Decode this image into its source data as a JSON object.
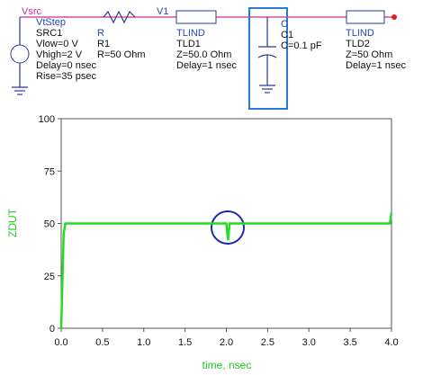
{
  "schematic": {
    "source": {
      "net": "Vsrc",
      "type": "VtStep",
      "name": "SRC1",
      "params": [
        "Vlow=0 V",
        "Vhigh=2 V",
        "Delay=0 nsec",
        "Rise=35 psec"
      ]
    },
    "resistor": {
      "type": "R",
      "name": "R1",
      "params": [
        "R=50 Ohm"
      ]
    },
    "node": "V1",
    "tline1": {
      "type": "TLIND",
      "name": "TLD1",
      "params": [
        "Z=50.0 Ohm",
        "Delay=1 nsec"
      ]
    },
    "capacitor": {
      "type": "C",
      "name": "C1",
      "params": [
        "C=0.1 pF"
      ]
    },
    "tline2": {
      "type": "TLIND",
      "name": "TLD2",
      "params": [
        "Z=50 Ohm",
        "Delay=1 nsec"
      ]
    }
  },
  "chart_data": {
    "type": "line",
    "x_label": "time, nsec",
    "y_label": "ZDUT",
    "x": [
      0,
      0.03,
      0.05,
      1.98,
      2.0,
      2.02,
      2.04,
      3.98,
      4.0
    ],
    "series": [
      {
        "name": "ZDUT",
        "color": "#22dd22",
        "values": [
          0,
          45,
          50,
          50,
          50,
          42,
          50,
          50,
          55
        ]
      }
    ],
    "xlim": [
      0,
      4
    ],
    "ylim": [
      0,
      100
    ],
    "xticks": [
      {
        "value": 0,
        "label": "0.0"
      },
      0.5,
      {
        "value": 1,
        "label": "1.0"
      },
      1.5,
      {
        "value": 2,
        "label": "2.0"
      },
      2.5,
      {
        "value": 3,
        "label": "3.0"
      },
      3.5,
      {
        "value": 4,
        "label": "4.0"
      }
    ],
    "yticks": [
      0,
      25,
      50,
      75,
      100
    ]
  }
}
